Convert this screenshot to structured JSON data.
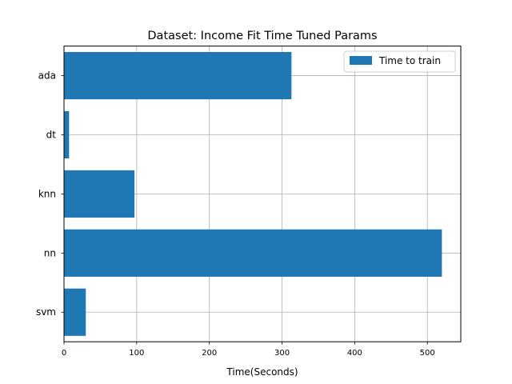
{
  "chart_data": {
    "type": "bar",
    "orientation": "horizontal",
    "title": "Dataset: Income Fit Time Tuned Params",
    "xlabel": "Time(Seconds)",
    "ylabel": "",
    "categories": [
      "ada",
      "dt",
      "knn",
      "nn",
      "svm"
    ],
    "series": [
      {
        "name": "Time to train",
        "values": [
          313,
          7,
          97,
          520,
          30
        ],
        "color": "#1f77b4"
      }
    ],
    "xlim": [
      0,
      546
    ],
    "xticks": [
      0,
      100,
      200,
      300,
      400,
      500
    ],
    "grid": true,
    "legend_position": "top-right"
  }
}
